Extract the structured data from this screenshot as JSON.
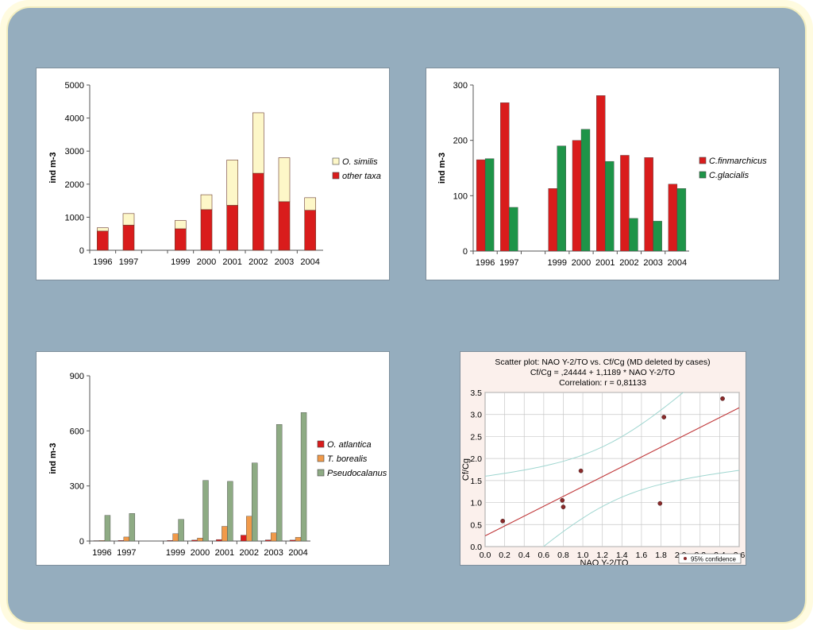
{
  "chart_data": [
    {
      "type": "bar",
      "stacked": true,
      "categories": [
        "1996",
        "1997",
        "",
        "1999",
        "2000",
        "2001",
        "2002",
        "2003",
        "2004"
      ],
      "title": "",
      "xlabel": "",
      "ylabel": "ind m-3",
      "ylim": [
        0,
        5000
      ],
      "yticks": [
        0,
        1000,
        2000,
        3000,
        4000,
        5000
      ],
      "legend_position": "right",
      "series": [
        {
          "name": "O. similis",
          "color": "#fdf7c8",
          "values": [
            100,
            350,
            0,
            250,
            450,
            1370,
            1830,
            1330,
            380
          ]
        },
        {
          "name": "other taxa",
          "color": "#d91c1c",
          "values": [
            580,
            760,
            0,
            650,
            1230,
            1360,
            2330,
            1470,
            1210
          ]
        }
      ]
    },
    {
      "type": "bar",
      "categories": [
        "1996",
        "1997",
        "",
        "1999",
        "2000",
        "2001",
        "2002",
        "2003",
        "2004"
      ],
      "title": "",
      "xlabel": "",
      "ylabel": "ind m-3",
      "ylim": [
        0,
        300
      ],
      "yticks": [
        0,
        100,
        200,
        300
      ],
      "legend_position": "right",
      "series": [
        {
          "name": "C.finmarchicus",
          "color": "#d91c1c",
          "values": [
            165,
            268,
            0,
            113,
            200,
            281,
            173,
            169,
            121
          ]
        },
        {
          "name": "C.glacialis",
          "color": "#1e9448",
          "values": [
            167,
            79,
            0,
            190,
            220,
            162,
            59,
            54,
            113
          ]
        }
      ]
    },
    {
      "type": "bar",
      "categories": [
        "1996",
        "1997",
        "",
        "1999",
        "2000",
        "2001",
        "2002",
        "2003",
        "2004"
      ],
      "title": "",
      "xlabel": "",
      "ylabel": "ind m-3",
      "ylim": [
        0,
        900
      ],
      "yticks": [
        0,
        300,
        600,
        900
      ],
      "legend_position": "right",
      "series": [
        {
          "name": "O. atlantica",
          "color": "#d91c1c",
          "values": [
            2,
            3,
            0,
            3,
            5,
            8,
            32,
            6,
            5
          ]
        },
        {
          "name": "T. borealis",
          "color": "#f19a4a",
          "values": [
            3,
            22,
            0,
            40,
            16,
            80,
            135,
            45,
            20
          ]
        },
        {
          "name": "Pseudocalanus",
          "color": "#8eab84",
          "values": [
            140,
            150,
            0,
            118,
            330,
            325,
            425,
            635,
            700
          ]
        }
      ]
    },
    {
      "type": "scatter",
      "title": "Scatter plot: NAO Y-2/TO vs. Cf/Cg (MD deleted by cases)",
      "subtitle": "Cf/Cg = ,24444 + 1,1189 * NAO Y-2/TO",
      "annotation": "Correlation: r =   0,81133",
      "xlabel": "NAO Y-2/TO",
      "ylabel": "Cf/Cg",
      "xlim": [
        0.0,
        2.6
      ],
      "ylim": [
        0.0,
        3.5
      ],
      "xticks": [
        "0.0",
        "0.2",
        "0.4",
        "0.6",
        "0.8",
        "1.0",
        "1.2",
        "1.4",
        "1.6",
        "1.8",
        "2.0",
        "2.2",
        "2.4",
        "2.6"
      ],
      "yticks": [
        "0.0",
        "0.5",
        "1.0",
        "1.5",
        "2.0",
        "2.5",
        "3.0",
        "3.5"
      ],
      "grid": true,
      "legend_position": "bottom-right",
      "legend_label": "95% confidence",
      "point_color": "#8a2a2a",
      "line_color": "#c0393b",
      "confidence_color": "#9fd6d0",
      "points": [
        {
          "x": 0.18,
          "y": 0.58
        },
        {
          "x": 0.79,
          "y": 1.05
        },
        {
          "x": 0.8,
          "y": 0.9
        },
        {
          "x": 0.98,
          "y": 1.72
        },
        {
          "x": 1.79,
          "y": 0.98
        },
        {
          "x": 1.83,
          "y": 2.94
        },
        {
          "x": 2.43,
          "y": 3.36
        }
      ],
      "regression": {
        "intercept": 0.24444,
        "slope": 1.1189
      }
    }
  ]
}
